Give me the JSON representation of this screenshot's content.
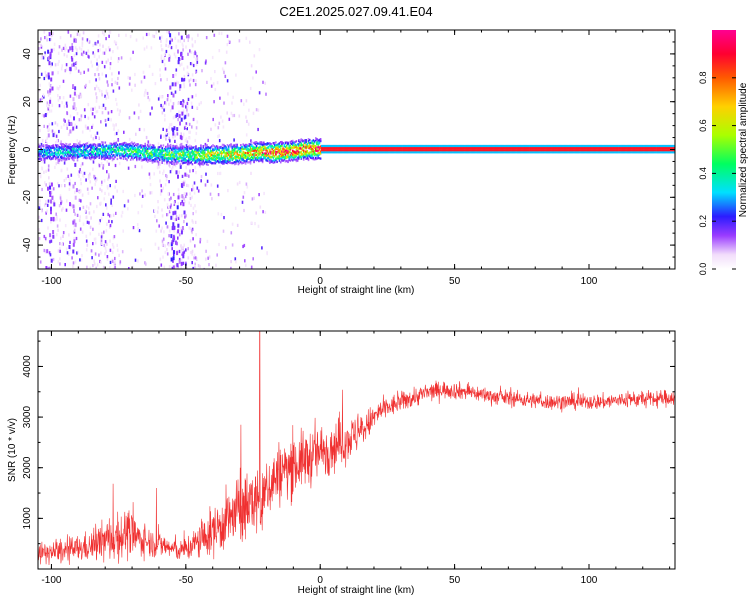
{
  "title": "C2E1.2025.027.09.41.E04",
  "colors": {
    "snr_line": "#f03030",
    "axis": "#000000",
    "background": "#ffffff"
  },
  "chart_data": [
    {
      "type": "heatmap",
      "title": "C2E1.2025.027.09.41.E04",
      "xlabel": "Height of straight line (km)",
      "ylabel": "Frequency (Hz)",
      "xlim": [
        -105,
        132
      ],
      "ylim": [
        -50,
        50
      ],
      "xticks": [
        -100,
        -50,
        0,
        50,
        100
      ],
      "xtick_labels": [
        "-100",
        "-50",
        "0",
        "50",
        "100"
      ],
      "yticks": [
        -40,
        -20,
        0,
        20,
        40
      ],
      "ytick_labels": [
        "-40",
        "-20",
        "0",
        "20",
        "40"
      ],
      "ridge": {
        "description": "dominant spectral line (Doppler frequency vs height)",
        "x": [
          -105,
          -90,
          -75,
          -60,
          -50,
          -40,
          -30,
          -22,
          -18,
          -12,
          -5,
          0,
          10,
          30,
          60,
          100,
          132
        ],
        "y": [
          -1.5,
          -1.0,
          -0.5,
          -2.0,
          -2.5,
          -2.5,
          -2.0,
          -1.0,
          -1.5,
          -1.0,
          0.0,
          0.0,
          0.0,
          0.0,
          0.0,
          0.0,
          0.0
        ],
        "amplitude": [
          0.35,
          0.4,
          0.45,
          0.5,
          0.6,
          0.7,
          0.75,
          0.85,
          0.95,
          0.95,
          0.98,
          1.0,
          1.0,
          1.0,
          1.0,
          1.0,
          1.0
        ]
      },
      "noise_band_x": [
        -105,
        -20
      ]
    },
    {
      "type": "colorbar",
      "label": "Normalized spectral amplitude",
      "range": [
        0.0,
        1.0
      ],
      "ticks": [
        0.0,
        0.2,
        0.4,
        0.6,
        0.8
      ],
      "tick_labels": [
        "0.0",
        "0.2",
        "0.4",
        "0.6",
        "0.8"
      ]
    },
    {
      "type": "line",
      "xlabel": "Height of straight line (km)",
      "ylabel": "SNR (10 * v/v)",
      "xlim": [
        -105,
        132
      ],
      "ylim": [
        0,
        4700
      ],
      "xticks": [
        -100,
        -50,
        0,
        50,
        100
      ],
      "xtick_labels": [
        "-100",
        "-50",
        "0",
        "50",
        "100"
      ],
      "yticks": [
        1000,
        2000,
        3000,
        4000
      ],
      "ytick_labels": [
        "1000",
        "2000",
        "3000",
        "4000"
      ],
      "series": [
        {
          "name": "SNR",
          "x": [
            -105,
            -95,
            -85,
            -78,
            -72,
            -65,
            -58,
            -52,
            -48,
            -42,
            -35,
            -28,
            -24,
            -22,
            -20,
            -15,
            -8,
            0,
            8,
            15,
            22,
            30,
            38,
            45,
            55,
            65,
            75,
            85,
            95,
            105,
            115,
            125,
            132
          ],
          "y": [
            300,
            350,
            450,
            600,
            700,
            550,
            450,
            350,
            450,
            650,
            950,
            1200,
            1400,
            1100,
            1600,
            1900,
            2100,
            2300,
            2500,
            2700,
            3100,
            3300,
            3450,
            3550,
            3500,
            3400,
            3350,
            3300,
            3300,
            3300,
            3350,
            3350,
            3400
          ],
          "noise": [
            200,
            250,
            300,
            500,
            500,
            300,
            250,
            200,
            300,
            450,
            600,
            700,
            700,
            650,
            650,
            650,
            600,
            550,
            500,
            350,
            250,
            200,
            200,
            180,
            170,
            160,
            160,
            160,
            160,
            160,
            170,
            170,
            170
          ]
        }
      ],
      "spikes": [
        {
          "x": -22.5,
          "y": 4700
        },
        {
          "x": -29.5,
          "y": 2850
        },
        {
          "x": -61,
          "y": 1600
        }
      ]
    }
  ]
}
